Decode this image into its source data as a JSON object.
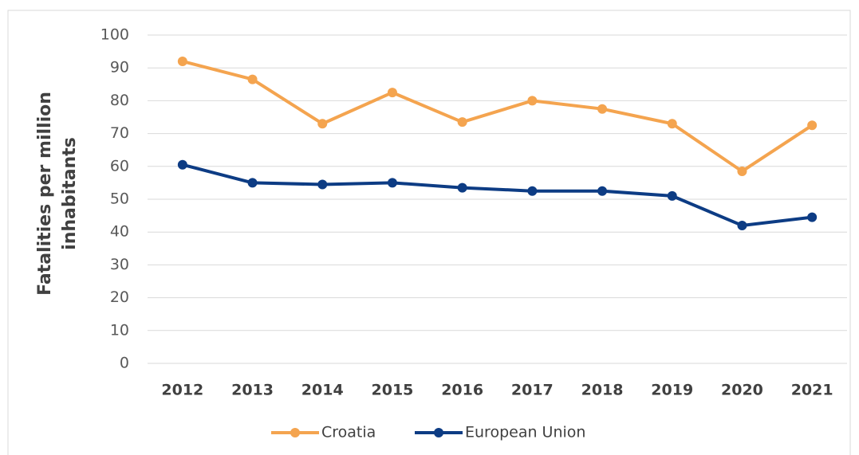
{
  "chart_data": {
    "type": "line",
    "ylabel": "Fatalities per million inhabitants",
    "categories": [
      "2012",
      "2013",
      "2014",
      "2015",
      "2016",
      "2017",
      "2018",
      "2019",
      "2020",
      "2021"
    ],
    "series": [
      {
        "name": "Croatia",
        "color": "#f4a44f",
        "values": [
          92,
          86.5,
          73,
          82.5,
          73.5,
          80,
          77.5,
          73,
          58.5,
          72.5
        ]
      },
      {
        "name": "European Union",
        "color": "#0d3c84",
        "values": [
          60.5,
          55,
          54.5,
          55,
          53.5,
          52.5,
          52.5,
          51,
          42,
          44.5
        ]
      }
    ],
    "ylim": [
      0,
      100
    ],
    "yticks": [
      0,
      10,
      20,
      30,
      40,
      50,
      60,
      70,
      80,
      90,
      100
    ],
    "grid": true,
    "legend": "bottom"
  }
}
